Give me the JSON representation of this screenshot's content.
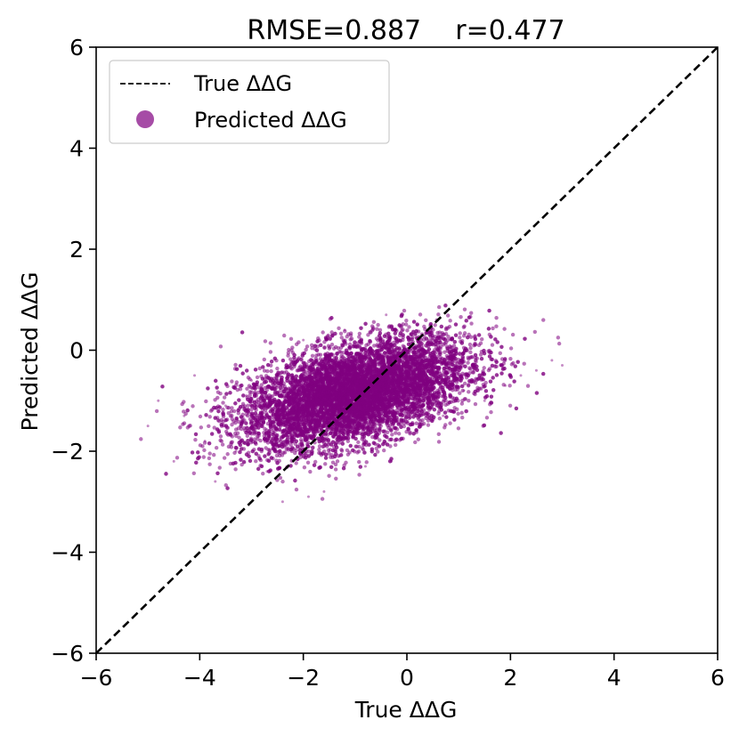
{
  "chart_data": {
    "type": "scatter",
    "title": "RMSE=0.887    r=0.477",
    "xlabel": "True ΔΔG",
    "ylabel": "Predicted ΔΔG",
    "xlim": [
      -6,
      6
    ],
    "ylim": [
      -6,
      6
    ],
    "xticks": [
      "−6",
      "−4",
      "−2",
      "0",
      "2",
      "4",
      "6"
    ],
    "yticks": [
      "−6",
      "−4",
      "−2",
      "0",
      "2",
      "4",
      "6"
    ],
    "grid": false,
    "legend_position": "top-left",
    "colors": {
      "points": "#800080",
      "legend_marker": "#a64ca6",
      "diagonal": "#000000"
    },
    "series": [
      {
        "name": "True ΔΔG",
        "kind": "line",
        "style": "dashed",
        "x": [
          -6,
          6
        ],
        "y": [
          -6,
          6
        ]
      },
      {
        "name": "Predicted ΔΔG",
        "kind": "scatter",
        "cluster": {
          "x_mean": -1.0,
          "y_mean": -0.85,
          "x_sd": 1.1,
          "y_sd": 0.55,
          "r": 0.477,
          "x_range": [
            -5.2,
            3.1
          ],
          "y_range": [
            -3.4,
            0.9
          ]
        },
        "x": [
          -5.0,
          -4.8,
          -4.5,
          -4.3,
          -4.1,
          -3.9,
          -3.7,
          -3.5,
          -3.3,
          -3.1,
          -2.9,
          -2.7,
          -2.5,
          -2.3,
          -2.1,
          -1.9,
          -1.7,
          -1.5,
          -1.3,
          -1.1,
          -0.9,
          -0.7,
          -0.5,
          -0.3,
          -0.1,
          0.1,
          0.3,
          0.5,
          0.7,
          0.9,
          1.1,
          1.3,
          1.5,
          1.7,
          1.9,
          2.2,
          2.5,
          2.8,
          3.0,
          -2.4,
          -1.6,
          -0.8,
          0.2,
          -3.0,
          -2.0,
          -1.2,
          -0.4,
          0.6
        ],
        "y": [
          -1.5,
          -1.0,
          -2.2,
          -1.3,
          -0.5,
          -1.8,
          -2.6,
          -1.1,
          -2.0,
          -0.9,
          -1.5,
          -2.4,
          -1.0,
          -1.7,
          -0.4,
          -2.9,
          -1.2,
          -0.7,
          -2.1,
          -1.0,
          -0.3,
          -1.6,
          -0.6,
          -2.2,
          -0.1,
          -0.9,
          0.3,
          -0.5,
          -1.3,
          -0.2,
          -0.8,
          -0.4,
          -1.0,
          -0.3,
          -0.7,
          -0.5,
          -0.4,
          -0.2,
          -0.3,
          -3.0,
          -2.8,
          -2.3,
          0.5,
          -0.6,
          0.2,
          0.4,
          0.7,
          0.6
        ]
      }
    ]
  }
}
